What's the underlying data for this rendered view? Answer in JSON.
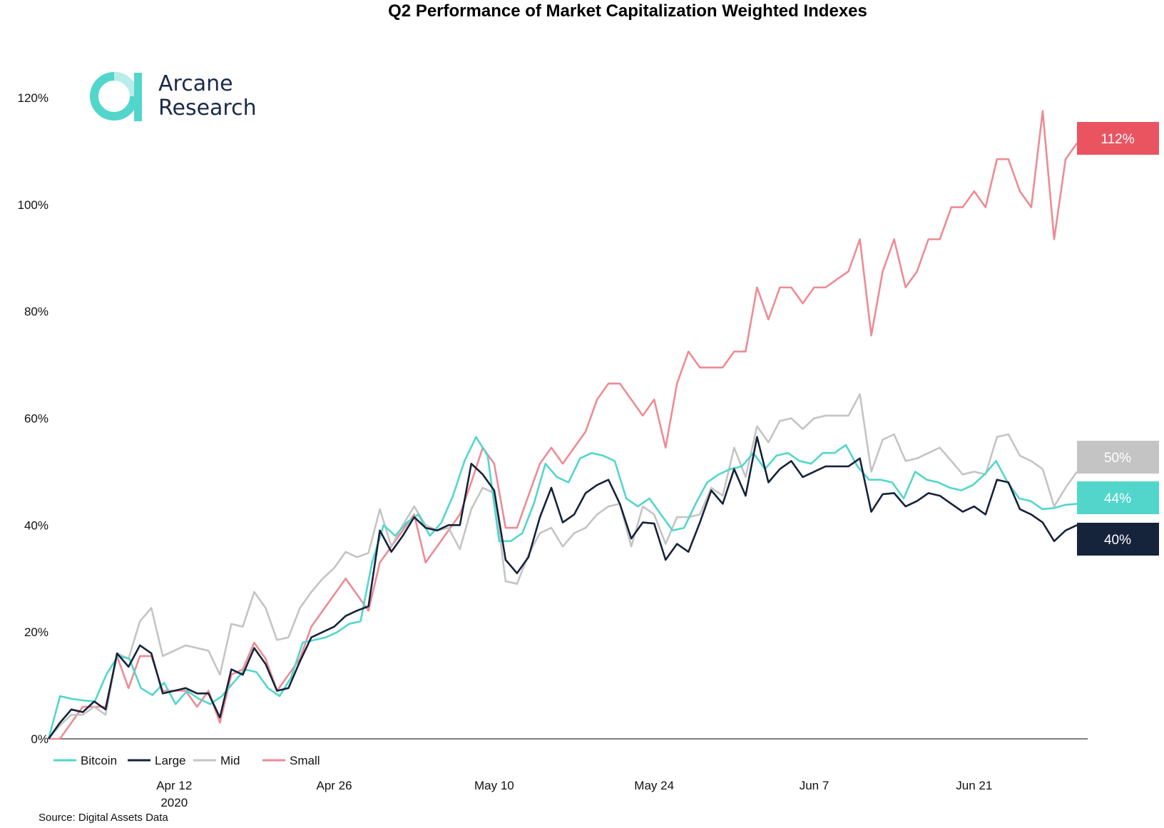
{
  "logo": {
    "line1": "Arcane",
    "line2": "Research",
    "color_primary": "#52d6cc",
    "color_light": "#b9ede9"
  },
  "source": "Source: Digital Assets Data",
  "chart_data": {
    "type": "line",
    "title": "Q2 Performance of Market Capitalization Weighted Indexes",
    "xlabel": "",
    "ylabel": "",
    "x_range": [
      "2020-04-01",
      "2020-06-30"
    ],
    "ylim": [
      0,
      120
    ],
    "y_ticks": [
      0,
      20,
      40,
      60,
      80,
      100,
      120
    ],
    "y_tick_labels": [
      "0%",
      "20%",
      "40%",
      "60%",
      "80%",
      "100%",
      "120%"
    ],
    "x_ticks": [
      "2020-04-12",
      "2020-04-26",
      "2020-05-10",
      "2020-05-24",
      "2020-06-07",
      "2020-06-21"
    ],
    "x_tick_labels": [
      "Apr 12",
      "Apr 26",
      "May 10",
      "May 24",
      "Jun 7",
      "Jun 21"
    ],
    "x_tick_sublabel": "2020",
    "grid": false,
    "legend_position": "bottom-left",
    "series": [
      {
        "name": "Bitcoin",
        "color": "#52d6cc",
        "end_label": "44%",
        "values": [
          0,
          8,
          7.5,
          7.2,
          7,
          12,
          15.5,
          15,
          9.5,
          8.2,
          10.5,
          6.5,
          9,
          7.5,
          6.5,
          8,
          10.5,
          13,
          12.5,
          9.5,
          8,
          11.5,
          18,
          18.5,
          19,
          20,
          21.5,
          22,
          33,
          40,
          38,
          40.5,
          42,
          38,
          40.5,
          45.5,
          52,
          56.5,
          53,
          37,
          37,
          38.5,
          44,
          51.5,
          49,
          48,
          52.5,
          53.5,
          53,
          52,
          45,
          43.5,
          45,
          42,
          39,
          39.5,
          44,
          48,
          49.5,
          50.5,
          51,
          53.5,
          50.5,
          53,
          53.5,
          52,
          51.5,
          53.5,
          53.5,
          55,
          51,
          48.5,
          48.5,
          48,
          45,
          50,
          48.5,
          48,
          47,
          46.5,
          47.5,
          49.5,
          52,
          48,
          45,
          44.5,
          43,
          43.2,
          43.8,
          44
        ]
      },
      {
        "name": "Large",
        "color": "#15233b",
        "end_label": "40%",
        "values": [
          0,
          3,
          5.5,
          5,
          7,
          5.5,
          16,
          13.5,
          17.5,
          16,
          8.5,
          9,
          9.5,
          8.5,
          8.5,
          4,
          13,
          12,
          17,
          14,
          9,
          9.5,
          14.5,
          19,
          20,
          21,
          23,
          24,
          24.8,
          39,
          35,
          38,
          41.5,
          39.5,
          39,
          40,
          40,
          51.5,
          49.5,
          46.5,
          33.5,
          31,
          34,
          41.5,
          47,
          40.5,
          42,
          46,
          47.5,
          48.5,
          44,
          37.5,
          40.5,
          40.3,
          33.5,
          36.5,
          35,
          40.5,
          46.5,
          44,
          50.5,
          45.5,
          56.5,
          48,
          50.5,
          52,
          49,
          50,
          51,
          51,
          51,
          52.5,
          42.5,
          45.8,
          46,
          43.5,
          44.5,
          46,
          45.5,
          44,
          42.5,
          43.5,
          42,
          48.5,
          48,
          43,
          42,
          40.5,
          37,
          39,
          40
        ]
      },
      {
        "name": "Mid",
        "color": "#c4c4c4",
        "end_label": "50%",
        "values": [
          0,
          2.5,
          4.5,
          4.5,
          6,
          4.5,
          16,
          15,
          22,
          24.5,
          15.5,
          16.5,
          17.5,
          17,
          16.5,
          12,
          21.5,
          21,
          27.5,
          24.5,
          18.5,
          19,
          24.5,
          27.5,
          30,
          32,
          35,
          34,
          34.8,
          43,
          36,
          40,
          43.5,
          40,
          39,
          39.5,
          35.5,
          43,
          47,
          46,
          29.5,
          29,
          34.5,
          38.5,
          39.5,
          36,
          38.5,
          39.5,
          42,
          43.5,
          44,
          36,
          43.5,
          42,
          36.5,
          41.5,
          41.5,
          42,
          47,
          45.5,
          54.5,
          49,
          58.5,
          55.5,
          59.5,
          60,
          58,
          60,
          60.5,
          60.5,
          60.5,
          64.5,
          50,
          56,
          57,
          52,
          52.5,
          53.5,
          54.5,
          52,
          49.5,
          50,
          49.5,
          56.5,
          57,
          53,
          52,
          50.5,
          43.5,
          47,
          50
        ]
      },
      {
        "name": "Small",
        "color": "#ed8b94",
        "end_label": "112%",
        "values": [
          0,
          0,
          3,
          6,
          6,
          6,
          15.5,
          9.5,
          15.5,
          15.5,
          9,
          9,
          9,
          6,
          9,
          3,
          12,
          13,
          18,
          15,
          9,
          12,
          15,
          21,
          24,
          27,
          30,
          27,
          24,
          33,
          36,
          39,
          42,
          33,
          36,
          39,
          42,
          48,
          54.5,
          51.5,
          39.5,
          39.5,
          45.5,
          51.5,
          54.5,
          51.5,
          54.5,
          57.5,
          63.5,
          66.5,
          66.5,
          63.5,
          60.5,
          63.5,
          54.5,
          66.5,
          72.5,
          69.5,
          69.5,
          69.5,
          72.5,
          72.5,
          84.5,
          78.5,
          84.5,
          84.5,
          81.5,
          84.5,
          84.5,
          86,
          87.5,
          93.5,
          75.5,
          87.5,
          93.5,
          84.5,
          87.5,
          93.5,
          93.5,
          99.5,
          99.5,
          102.5,
          99.5,
          108.5,
          108.5,
          102.5,
          99.5,
          117.5,
          93.5,
          108.5,
          111.5
        ]
      }
    ],
    "end_label_colors": {
      "Small": "#ea5461",
      "Mid": "#c4c4c4",
      "Bitcoin": "#52d6cc",
      "Large": "#15233b"
    }
  }
}
